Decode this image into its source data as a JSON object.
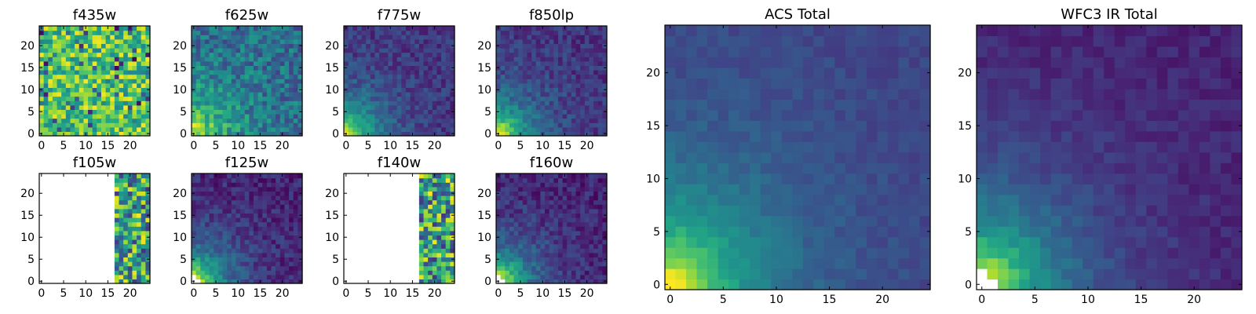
{
  "chart_data": [
    {
      "type": "heatmap",
      "title": "f435w",
      "x_ticks": [
        0,
        5,
        10,
        15,
        20
      ],
      "y_ticks": [
        0,
        5,
        10,
        15,
        20
      ],
      "xlim": [
        0,
        24
      ],
      "ylim": [
        0,
        24
      ],
      "colormap": "viridis",
      "pattern": "noise_high",
      "grid": false
    },
    {
      "type": "heatmap",
      "title": "f625w",
      "x_ticks": [
        0,
        5,
        10,
        15,
        20
      ],
      "y_ticks": [
        0,
        5,
        10,
        15,
        20
      ],
      "xlim": [
        0,
        24
      ],
      "ylim": [
        0,
        24
      ],
      "colormap": "viridis",
      "pattern": "gradient_noisy",
      "grid": false
    },
    {
      "type": "heatmap",
      "title": "f775w",
      "x_ticks": [
        0,
        5,
        10,
        15,
        20
      ],
      "y_ticks": [
        0,
        5,
        10,
        15,
        20
      ],
      "xlim": [
        0,
        24
      ],
      "ylim": [
        0,
        24
      ],
      "colormap": "viridis",
      "pattern": "gradient",
      "grid": false
    },
    {
      "type": "heatmap",
      "title": "f850lp",
      "x_ticks": [
        0,
        5,
        10,
        15,
        20
      ],
      "y_ticks": [
        0,
        5,
        10,
        15,
        20
      ],
      "xlim": [
        0,
        24
      ],
      "ylim": [
        0,
        24
      ],
      "colormap": "viridis",
      "pattern": "gradient",
      "grid": false
    },
    {
      "type": "heatmap",
      "title": "f105w",
      "x_ticks": [
        0,
        5,
        10,
        15,
        20
      ],
      "y_ticks": [
        0,
        5,
        10,
        15,
        20
      ],
      "xlim": [
        0,
        24
      ],
      "ylim": [
        0,
        24
      ],
      "colormap": "viridis",
      "pattern": "partial_noise",
      "data_start_x": 17,
      "grid": false
    },
    {
      "type": "heatmap",
      "title": "f125w",
      "x_ticks": [
        0,
        5,
        10,
        15,
        20
      ],
      "y_ticks": [
        0,
        5,
        10,
        15,
        20
      ],
      "xlim": [
        0,
        24
      ],
      "ylim": [
        0,
        24
      ],
      "colormap": "viridis",
      "pattern": "gradient_masked",
      "grid": false
    },
    {
      "type": "heatmap",
      "title": "f140w",
      "x_ticks": [
        0,
        5,
        10,
        15,
        20
      ],
      "y_ticks": [
        0,
        5,
        10,
        15,
        20
      ],
      "xlim": [
        0,
        24
      ],
      "ylim": [
        0,
        24
      ],
      "colormap": "viridis",
      "pattern": "partial_noise",
      "data_start_x": 17,
      "grid": false
    },
    {
      "type": "heatmap",
      "title": "f160w",
      "x_ticks": [
        0,
        5,
        10,
        15,
        20
      ],
      "y_ticks": [
        0,
        5,
        10,
        15,
        20
      ],
      "xlim": [
        0,
        24
      ],
      "ylim": [
        0,
        24
      ],
      "colormap": "viridis",
      "pattern": "gradient_masked",
      "grid": false
    },
    {
      "type": "heatmap",
      "title": "ACS Total",
      "x_ticks": [
        0,
        5,
        10,
        15,
        20
      ],
      "y_ticks": [
        0,
        5,
        10,
        15,
        20
      ],
      "xlim": [
        0,
        24
      ],
      "ylim": [
        0,
        24
      ],
      "colormap": "viridis",
      "pattern": "gradient_smooth",
      "grid": false
    },
    {
      "type": "heatmap",
      "title": "WFC3 IR Total",
      "x_ticks": [
        0,
        5,
        10,
        15,
        20
      ],
      "y_ticks": [
        0,
        5,
        10,
        15,
        20
      ],
      "xlim": [
        0,
        24
      ],
      "ylim": [
        0,
        24
      ],
      "colormap": "viridis",
      "pattern": "gradient_masked_smooth",
      "grid": false
    }
  ]
}
